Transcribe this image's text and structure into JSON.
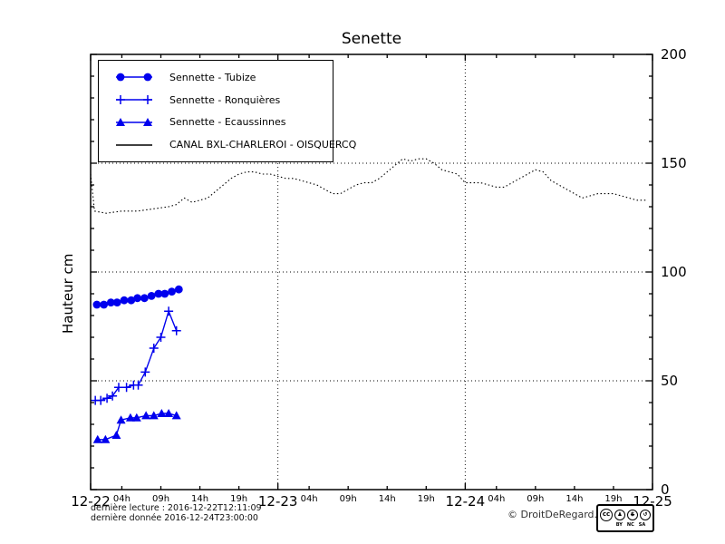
{
  "title": "Senette",
  "ylabel": "Hauteur cm",
  "colors": {
    "series_blue": "#0000ee",
    "line_black": "#000000",
    "grid": "#000000"
  },
  "footer": {
    "last_reading": "dernière lecture : 2016-12-22T12:11:09",
    "last_data": "dernière donnée  2016-12-24T23:00:00",
    "copyright": "© DroitDeRegard.be",
    "license": {
      "cc": "cc",
      "labels": [
        "BY",
        "NC",
        "SA"
      ]
    }
  },
  "chart_data": {
    "type": "line",
    "title": "Senette",
    "xlabel": "",
    "ylabel": "Hauteur cm",
    "ylim": [
      0,
      200
    ],
    "yticks": [
      0,
      50,
      100,
      150,
      200
    ],
    "y_minor_step": 10,
    "y_axis_side": "right",
    "grid": "dotted horizontal at 50/100/150, dotted vertical at day boundaries",
    "legend_position": "upper left",
    "x_unit": "hours from 2016-12-22 00:00",
    "xlim_hours": [
      0,
      72
    ],
    "x_major_ticks": [
      {
        "h": 0,
        "label": "12-22"
      },
      {
        "h": 24,
        "label": "12-23"
      },
      {
        "h": 48,
        "label": "12-24"
      },
      {
        "h": 72,
        "label": "12-25"
      }
    ],
    "x_minor_ticks": [
      {
        "h": 4,
        "label": "04h"
      },
      {
        "h": 9,
        "label": "09h"
      },
      {
        "h": 14,
        "label": "14h"
      },
      {
        "h": 19,
        "label": "19h"
      },
      {
        "h": 28,
        "label": "04h"
      },
      {
        "h": 33,
        "label": "09h"
      },
      {
        "h": 38,
        "label": "14h"
      },
      {
        "h": 43,
        "label": "19h"
      },
      {
        "h": 52,
        "label": "04h"
      },
      {
        "h": 57,
        "label": "09h"
      },
      {
        "h": 62,
        "label": "14h"
      },
      {
        "h": 67,
        "label": "19h"
      }
    ],
    "series": [
      {
        "name": "Sennette - Tubize",
        "color": "#0000ee",
        "marker": "circle",
        "linestyle": "solid",
        "x": [
          0.8,
          1.7,
          2.6,
          3.4,
          4.3,
          5.2,
          6.0,
          6.9,
          7.8,
          8.7,
          9.5,
          10.4,
          11.3
        ],
        "values": [
          85,
          85,
          86,
          86,
          87,
          87,
          88,
          88,
          89,
          90,
          90,
          91,
          92
        ]
      },
      {
        "name": "Sennette - Ronquières",
        "color": "#0000ee",
        "marker": "plus",
        "linestyle": "solid",
        "x": [
          0.6,
          1.3,
          2.1,
          2.8,
          3.6,
          4.6,
          5.5,
          6.1,
          7.0,
          8.1,
          9.0,
          10.0,
          11.0
        ],
        "values": [
          41,
          41,
          42,
          43,
          47,
          47,
          48,
          48,
          54,
          65,
          70,
          82,
          73
        ]
      },
      {
        "name": "Sennette - Ecaussinnes",
        "color": "#0000ee",
        "marker": "triangle",
        "linestyle": "solid",
        "x": [
          0.9,
          1.9,
          3.3,
          3.9,
          5.1,
          5.9,
          7.1,
          8.1,
          9.1,
          10.0,
          11.0
        ],
        "values": [
          23,
          23,
          25,
          32,
          33,
          33,
          34,
          34,
          35,
          35,
          34
        ]
      },
      {
        "name": "CANAL BXL-CHARLEROI  - OISQUERCQ",
        "color": "#000000",
        "marker": "none",
        "linestyle": "dotted",
        "x": [
          0,
          0.5,
          2,
          4,
          6,
          8,
          10,
          11,
          12,
          13,
          14,
          15,
          16,
          17,
          18,
          19,
          20,
          21,
          22,
          23,
          24,
          25,
          26,
          27,
          28,
          29,
          30,
          31,
          32,
          33,
          34,
          35,
          36,
          37,
          38,
          39,
          40,
          41,
          42,
          43,
          44,
          45,
          46,
          47,
          48,
          49,
          50,
          51,
          52,
          53,
          54,
          55,
          56,
          57,
          58,
          59,
          60,
          61,
          62,
          63,
          64,
          65,
          66,
          67,
          68,
          69,
          70,
          71.2
        ],
        "values": [
          145,
          128,
          127,
          128,
          128,
          129,
          130,
          131,
          134,
          132,
          133,
          134,
          137,
          140,
          143,
          145,
          146,
          146,
          145,
          145,
          144,
          143,
          143,
          142,
          141,
          140,
          138,
          136,
          136,
          138,
          140,
          141,
          141,
          143,
          146,
          149,
          152,
          151,
          152,
          152,
          150,
          147,
          146,
          145,
          141,
          141,
          141,
          140,
          139,
          139,
          141,
          143,
          145,
          147,
          146,
          142,
          140,
          138,
          136,
          134,
          135,
          136,
          136,
          136,
          135,
          134,
          133,
          133
        ]
      }
    ]
  }
}
